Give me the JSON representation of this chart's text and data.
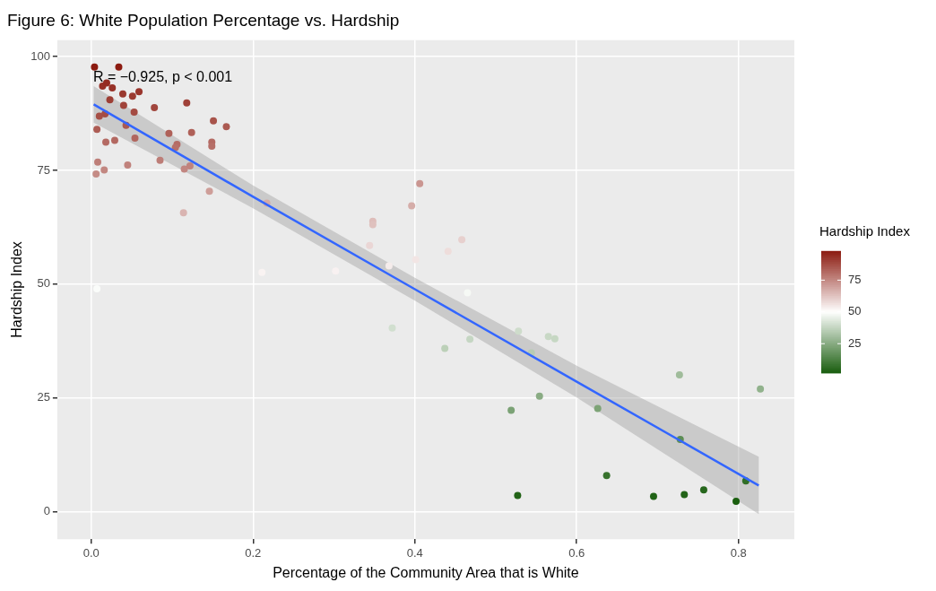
{
  "chart_data": {
    "type": "scatter",
    "title": "Figure 6: White Population Percentage vs. Hardship",
    "xlabel": "Percentage of the Community Area that is White",
    "ylabel": "Hardship Index",
    "clabel": "Hardship Index",
    "annotations": [
      "R = −0.925, p < 0.001"
    ],
    "xlim": [
      -0.042,
      0.869
    ],
    "ylim": [
      -6,
      103.6
    ],
    "xticks": [
      {
        "value": 0,
        "label": "0.0"
      },
      {
        "value": 0.2,
        "label": "0.2"
      },
      {
        "value": 0.4,
        "label": "0.4"
      },
      {
        "value": 0.6,
        "label": "0.6"
      },
      {
        "value": 0.8,
        "label": "0.8"
      }
    ],
    "yticks": [
      0,
      25,
      50,
      75,
      100
    ],
    "clim": [
      2,
      98
    ],
    "cticks": [
      25,
      50,
      75
    ],
    "grid": true,
    "legend": false,
    "series": [
      {
        "marker": "circle",
        "x": [
          0.004,
          0.034,
          0.014,
          0.019,
          0.026,
          0.039,
          0.059,
          0.051,
          0.023,
          0.04,
          0.053,
          0.078,
          0.118,
          0.01,
          0.017,
          0.007,
          0.043,
          0.096,
          0.124,
          0.151,
          0.167,
          0.018,
          0.029,
          0.054,
          0.106,
          0.104,
          0.149,
          0.149,
          0.008,
          0.045,
          0.085,
          0.016,
          0.006,
          0.115,
          0.122,
          0.146,
          0.114,
          0.007,
          0.211,
          0.302,
          0.217,
          0.406,
          0.396,
          0.348,
          0.348,
          0.344,
          0.458,
          0.441,
          0.401,
          0.368,
          0.465,
          0.372,
          0.468,
          0.437,
          0.528,
          0.565,
          0.573,
          0.544,
          0.519,
          0.554,
          0.626,
          0.727,
          0.827,
          0.728,
          0.637,
          0.527,
          0.695,
          0.733,
          0.757,
          0.797,
          0.809
        ],
        "values": [
          97.7,
          97.7,
          93.5,
          94.2,
          93.1,
          91.8,
          92.3,
          91.3,
          90.5,
          89.3,
          87.8,
          88.8,
          89.8,
          86.9,
          87.4,
          84,
          84.9,
          83.1,
          83.3,
          85.9,
          84.6,
          81.2,
          81.6,
          82.1,
          80.7,
          80,
          81.2,
          80.3,
          76.8,
          76.2,
          77.2,
          75.1,
          74.2,
          75.3,
          76,
          70.4,
          65.7,
          49,
          52.6,
          52.9,
          67.8,
          72.1,
          67.2,
          63.8,
          63.1,
          58.5,
          59.8,
          57.2,
          55.4,
          54,
          48.1,
          40.4,
          37.9,
          35.9,
          39.7,
          38.5,
          38,
          34.9,
          22.3,
          25.4,
          22.7,
          30.1,
          27,
          15.9,
          8,
          3.6,
          3.4,
          3.8,
          4.8,
          2.3,
          6.8
        ],
        "colors": [
          "#8c1b10",
          "#8c1b10",
          "#963026",
          "#942c22",
          "#973127",
          "#9a382e",
          "#99352c",
          "#9b3a31",
          "#9d3e34",
          "#a0433a",
          "#a44b42",
          "#a1463d",
          "#9f4138",
          "#a64f46",
          "#a54d44",
          "#ad5d55",
          "#ab5951",
          "#af6159",
          "#af6058",
          "#a8544b",
          "#ab5a52",
          "#b46a63",
          "#b36861",
          "#b1665e",
          "#b56c65",
          "#b77069",
          "#b46a63",
          "#b66f68",
          "#be7f79",
          "#c0827c",
          "#bd7d77",
          "#c28781",
          "#c58c86",
          "#c28681",
          "#c0837d",
          "#ce9e99",
          "#d9b4b1",
          "#fafcfa",
          "#f9f3f2",
          "#f8f1f1",
          "#d4aaa6",
          "#ca9691",
          "#d5ada9",
          "#debdba",
          "#dfc1be",
          "#ead6d5",
          "#e7d0ce",
          "#eedddb",
          "#f2e5e4",
          "#f5eceb",
          "#f6f9f5",
          "#d1dfcf",
          "#c5d6c3",
          "#bcd0b8",
          "#cedccb",
          "#c8d8c5",
          "#c6d7c3",
          "#b7ccb3",
          "#7ba275",
          "#8aac84",
          "#7da376",
          "#a0bc9b",
          "#91b28c",
          "#5c8d55",
          "#37722d",
          "#226317",
          "#216316",
          "#236418",
          "#27671d",
          "#1b5f10",
          "#316e27"
        ]
      },
      {
        "type": "line",
        "marker": "none",
        "color": "#3366ff",
        "x": [
          0.003,
          0.2,
          0.4,
          0.6,
          0.825
        ],
        "values": [
          89.5,
          69.2,
          48.9,
          28.6,
          5.8
        ],
        "lower": [
          85.5,
          66.7,
          46.4,
          25.1,
          -0.5
        ],
        "upper": [
          93.5,
          71.7,
          51.4,
          32.1,
          12.1
        ]
      }
    ]
  }
}
